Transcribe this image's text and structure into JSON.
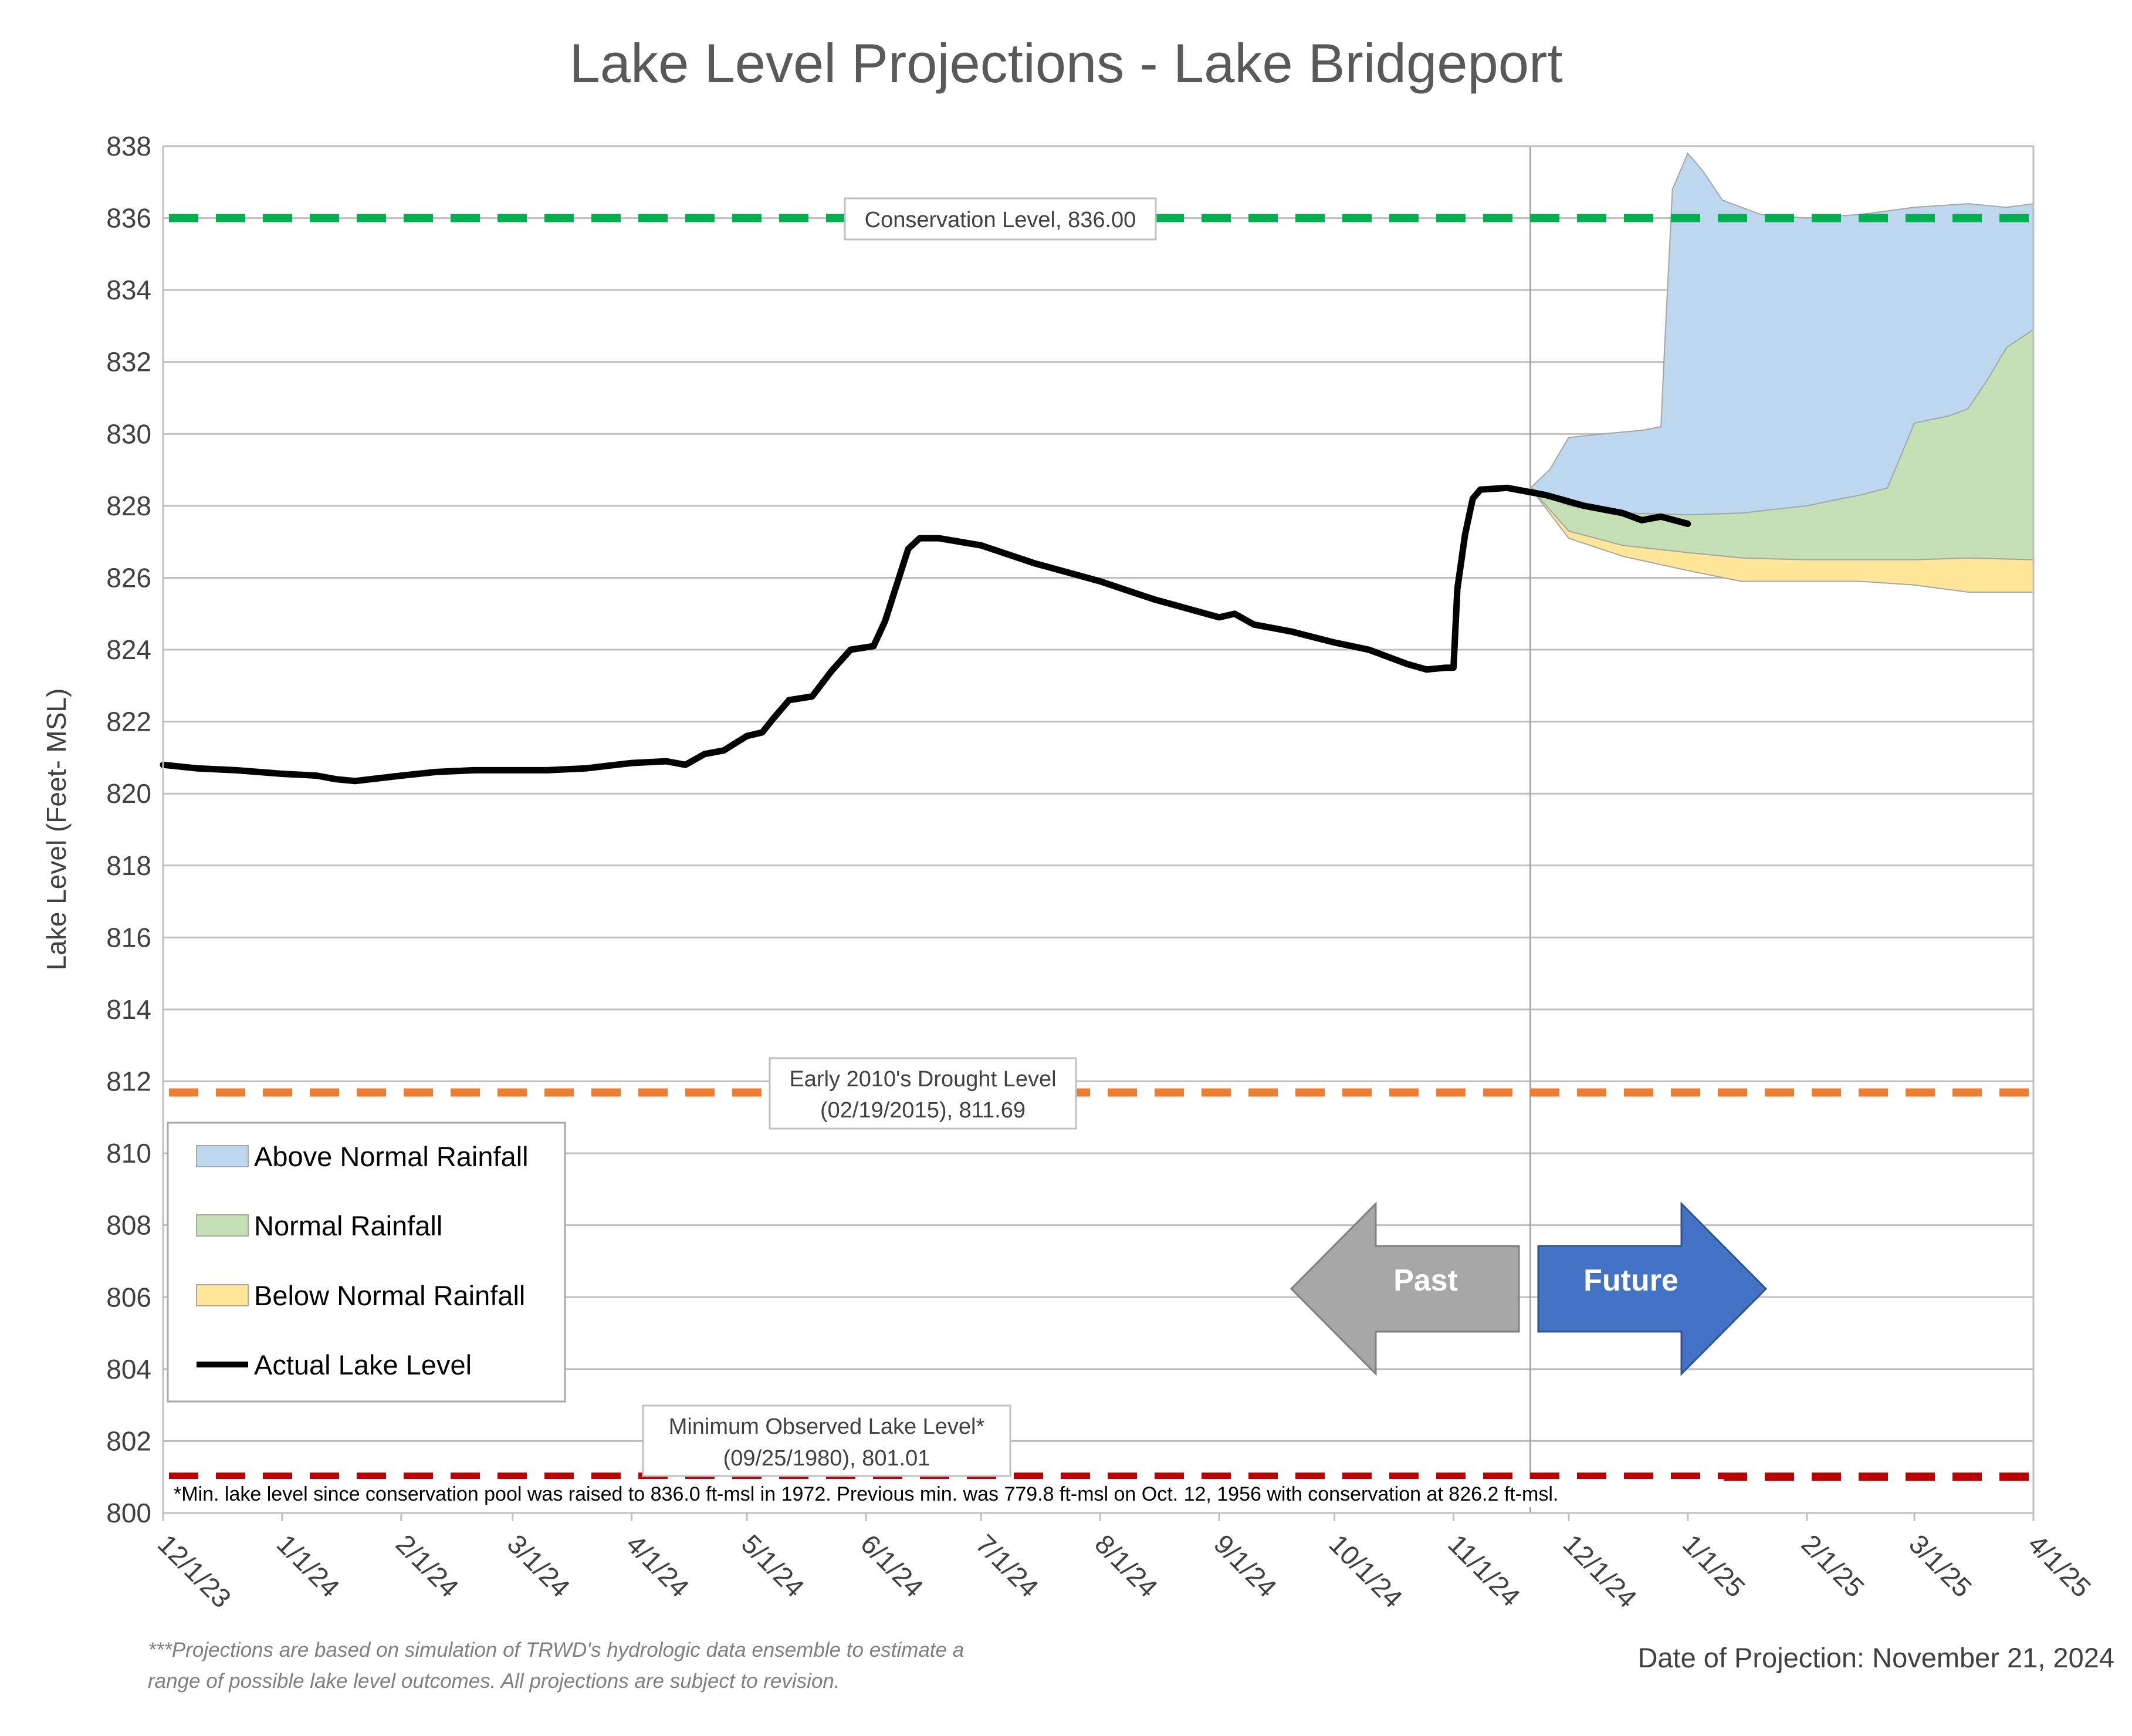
{
  "chart_data": {
    "type": "area",
    "title": "Lake Level Projections - Lake Bridgeport",
    "ylabel": "Lake Level (Feet- MSL)",
    "xlabel": "",
    "ylim": [
      800,
      838
    ],
    "y_ticks": [
      "800",
      "802",
      "804",
      "806",
      "808",
      "810",
      "812",
      "814",
      "816",
      "818",
      "820",
      "822",
      "824",
      "826",
      "828",
      "830",
      "832",
      "834",
      "836",
      "838"
    ],
    "x_range": [
      "2023-12-01",
      "2025-04-01"
    ],
    "x_ticks": [
      {
        "date": "2023-12-01",
        "label": "12/1/23"
      },
      {
        "date": "2024-01-01",
        "label": "1/1/24"
      },
      {
        "date": "2024-02-01",
        "label": "2/1/24"
      },
      {
        "date": "2024-03-01",
        "label": "3/1/24"
      },
      {
        "date": "2024-04-01",
        "label": "4/1/24"
      },
      {
        "date": "2024-05-01",
        "label": "5/1/24"
      },
      {
        "date": "2024-06-01",
        "label": "6/1/24"
      },
      {
        "date": "2024-07-01",
        "label": "7/1/24"
      },
      {
        "date": "2024-08-01",
        "label": "8/1/24"
      },
      {
        "date": "2024-09-01",
        "label": "9/1/24"
      },
      {
        "date": "2024-10-01",
        "label": "10/1/24"
      },
      {
        "date": "2024-11-01",
        "label": "11/1/24"
      },
      {
        "date": "2024-12-01",
        "label": "12/1/24"
      },
      {
        "date": "2025-01-01",
        "label": "1/1/25"
      },
      {
        "date": "2025-02-01",
        "label": "2/1/25"
      },
      {
        "date": "2025-03-01",
        "label": "3/1/25"
      },
      {
        "date": "2025-04-01",
        "label": "4/1/25"
      }
    ],
    "grid": true,
    "projection_date": "2024-11-21",
    "reference_lines": [
      {
        "name": "Conservation Level",
        "value": 836.0,
        "color": "#00b050",
        "label": "Conservation Level, 836.00"
      },
      {
        "name": "Early 2010's Drought Level",
        "value": 811.69,
        "color": "#ed7d31",
        "label_lines": [
          "Early 2010's Drought Level",
          "(02/19/2015), 811.69"
        ]
      },
      {
        "name": "Minimum Observed Lake Level",
        "value": 801.01,
        "color": "#c00000",
        "label_lines": [
          "Minimum Observed Lake Level*",
          "(09/25/1980), 801.01"
        ]
      }
    ],
    "series": [
      {
        "name": "Above Normal Rainfall",
        "kind": "band",
        "color": "#bdd7ee",
        "upper": [
          [
            "2024-11-21",
            828.5
          ],
          [
            "2024-11-26",
            829.0
          ],
          [
            "2024-12-01",
            829.9
          ],
          [
            "2024-12-10",
            830.0
          ],
          [
            "2024-12-20",
            830.1
          ],
          [
            "2024-12-25",
            830.2
          ],
          [
            "2024-12-26",
            832.5
          ],
          [
            "2024-12-28",
            836.8
          ],
          [
            "2025-01-01",
            837.8
          ],
          [
            "2025-01-05",
            837.3
          ],
          [
            "2025-01-10",
            836.5
          ],
          [
            "2025-01-20",
            836.1
          ],
          [
            "2025-02-01",
            836.0
          ],
          [
            "2025-02-15",
            836.1
          ],
          [
            "2025-03-01",
            836.3
          ],
          [
            "2025-03-15",
            836.4
          ],
          [
            "2025-03-25",
            836.3
          ],
          [
            "2025-04-01",
            836.4
          ]
        ],
        "lower": [
          [
            "2024-11-21",
            828.5
          ],
          [
            "2024-12-01",
            828.0
          ],
          [
            "2024-12-15",
            827.8
          ],
          [
            "2025-01-01",
            827.75
          ],
          [
            "2025-01-15",
            827.8
          ],
          [
            "2025-02-01",
            827.9
          ],
          [
            "2025-02-15",
            828.1
          ],
          [
            "2025-03-01",
            828.4
          ],
          [
            "2025-03-15",
            828.6
          ],
          [
            "2025-04-01",
            828.8
          ]
        ]
      },
      {
        "name": "Normal Rainfall",
        "kind": "band",
        "color": "#c5e0b4",
        "upper": [
          [
            "2024-11-21",
            828.5
          ],
          [
            "2024-12-01",
            828.0
          ],
          [
            "2024-12-15",
            827.8
          ],
          [
            "2025-01-01",
            827.75
          ],
          [
            "2025-01-15",
            827.8
          ],
          [
            "2025-02-01",
            828.0
          ],
          [
            "2025-02-10",
            828.2
          ],
          [
            "2025-02-15",
            828.3
          ],
          [
            "2025-02-22",
            828.5
          ],
          [
            "2025-03-01",
            830.3
          ],
          [
            "2025-03-10",
            830.5
          ],
          [
            "2025-03-15",
            830.7
          ],
          [
            "2025-03-20",
            831.5
          ],
          [
            "2025-03-25",
            832.4
          ],
          [
            "2025-04-01",
            832.9
          ]
        ],
        "lower": [
          [
            "2024-11-21",
            828.5
          ],
          [
            "2024-12-01",
            827.3
          ],
          [
            "2024-12-15",
            826.9
          ],
          [
            "2025-01-01",
            826.7
          ],
          [
            "2025-01-15",
            826.55
          ],
          [
            "2025-02-01",
            826.5
          ],
          [
            "2025-02-15",
            826.5
          ],
          [
            "2025-03-01",
            826.5
          ],
          [
            "2025-03-15",
            826.55
          ],
          [
            "2025-04-01",
            826.5
          ]
        ]
      },
      {
        "name": "Below Normal Rainfall",
        "kind": "band",
        "color": "#ffe699",
        "upper": [
          [
            "2024-11-21",
            828.5
          ],
          [
            "2024-12-01",
            827.3
          ],
          [
            "2024-12-15",
            826.9
          ],
          [
            "2025-01-01",
            826.7
          ],
          [
            "2025-01-15",
            826.55
          ],
          [
            "2025-02-01",
            826.5
          ],
          [
            "2025-02-15",
            826.5
          ],
          [
            "2025-03-01",
            826.5
          ],
          [
            "2025-03-15",
            826.55
          ],
          [
            "2025-04-01",
            826.5
          ]
        ],
        "lower": [
          [
            "2024-11-21",
            828.5
          ],
          [
            "2024-12-01",
            827.1
          ],
          [
            "2024-12-15",
            826.6
          ],
          [
            "2025-01-01",
            826.2
          ],
          [
            "2025-01-15",
            825.9
          ],
          [
            "2025-02-01",
            825.9
          ],
          [
            "2025-02-15",
            825.9
          ],
          [
            "2025-03-01",
            825.8
          ],
          [
            "2025-03-15",
            825.6
          ],
          [
            "2025-04-01",
            825.6
          ]
        ]
      },
      {
        "name": "Actual Lake Level",
        "kind": "line",
        "color": "#000000",
        "points": [
          [
            "2023-12-01",
            820.8
          ],
          [
            "2023-12-10",
            820.7
          ],
          [
            "2023-12-20",
            820.65
          ],
          [
            "2024-01-01",
            820.55
          ],
          [
            "2024-01-10",
            820.5
          ],
          [
            "2024-01-15",
            820.4
          ],
          [
            "2024-01-20",
            820.35
          ],
          [
            "2024-02-01",
            820.5
          ],
          [
            "2024-02-10",
            820.6
          ],
          [
            "2024-02-20",
            820.65
          ],
          [
            "2024-03-01",
            820.65
          ],
          [
            "2024-03-10",
            820.65
          ],
          [
            "2024-03-20",
            820.7
          ],
          [
            "2024-04-01",
            820.85
          ],
          [
            "2024-04-10",
            820.9
          ],
          [
            "2024-04-15",
            820.8
          ],
          [
            "2024-04-20",
            821.1
          ],
          [
            "2024-04-25",
            821.2
          ],
          [
            "2024-05-01",
            821.6
          ],
          [
            "2024-05-05",
            821.7
          ],
          [
            "2024-05-08",
            822.1
          ],
          [
            "2024-05-12",
            822.6
          ],
          [
            "2024-05-18",
            822.7
          ],
          [
            "2024-05-23",
            823.4
          ],
          [
            "2024-05-28",
            824.0
          ],
          [
            "2024-06-03",
            824.1
          ],
          [
            "2024-06-06",
            824.8
          ],
          [
            "2024-06-09",
            825.8
          ],
          [
            "2024-06-12",
            826.8
          ],
          [
            "2024-06-15",
            827.1
          ],
          [
            "2024-06-20",
            827.1
          ],
          [
            "2024-07-01",
            826.9
          ],
          [
            "2024-07-15",
            826.4
          ],
          [
            "2024-08-01",
            825.9
          ],
          [
            "2024-08-15",
            825.4
          ],
          [
            "2024-09-01",
            824.9
          ],
          [
            "2024-09-05",
            825.0
          ],
          [
            "2024-09-10",
            824.7
          ],
          [
            "2024-09-20",
            824.5
          ],
          [
            "2024-10-01",
            824.2
          ],
          [
            "2024-10-10",
            824.0
          ],
          [
            "2024-10-20",
            823.6
          ],
          [
            "2024-10-25",
            823.45
          ],
          [
            "2024-10-30",
            823.5
          ],
          [
            "2024-11-01",
            823.5
          ],
          [
            "2024-11-02",
            825.7
          ],
          [
            "2024-11-04",
            827.2
          ],
          [
            "2024-11-06",
            828.2
          ],
          [
            "2024-11-08",
            828.45
          ],
          [
            "2024-11-15",
            828.5
          ],
          [
            "2024-11-25",
            828.3
          ],
          [
            "2024-12-05",
            828.0
          ],
          [
            "2024-12-15",
            827.8
          ],
          [
            "2024-12-20",
            827.6
          ],
          [
            "2024-12-25",
            827.7
          ],
          [
            "2025-01-01",
            827.5
          ]
        ]
      }
    ]
  },
  "legend": {
    "items": [
      {
        "label": "Above Normal Rainfall",
        "color": "#bdd7ee",
        "stroke": "#a6a6a6",
        "kind": "box"
      },
      {
        "label": "Normal Rainfall",
        "color": "#c5e0b4",
        "stroke": "#a6a6a6",
        "kind": "box"
      },
      {
        "label": "Below Normal Rainfall",
        "color": "#ffe699",
        "stroke": "#a6a6a6",
        "kind": "box"
      },
      {
        "label": "Actual Lake Level",
        "color": "#000000",
        "kind": "line"
      }
    ]
  },
  "arrows": {
    "past_label": "Past",
    "future_label": "Future",
    "past_color": "#a6a6a6",
    "future_color": "#4472c4"
  },
  "note": "*Min. lake level since conservation pool was raised to 836.0 ft-msl in 1972.  Previous min. was 779.8 ft-msl on Oct. 12, 1956 with conservation at 826.2 ft-msl.",
  "footnote": {
    "line1": "***Projections are based on simulation of TRWD's hydrologic data ensemble to estimate a",
    "line2": "range of possible lake level outcomes.  All projections are subject to revision."
  },
  "projection_label": "Date of Projection: November 21, 2024"
}
